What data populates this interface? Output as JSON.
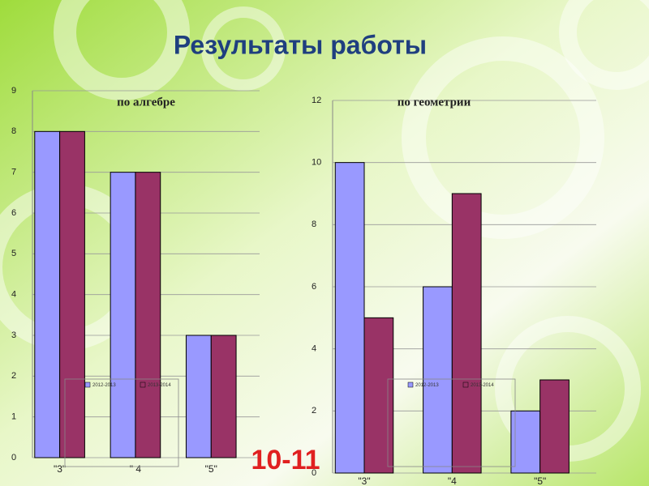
{
  "header": {
    "title": "Результаты работы",
    "grade": "10-11"
  },
  "chart_data": [
    {
      "type": "bar",
      "title": "по алгебре",
      "categories": [
        "\"3\"",
        "\" 4",
        "\"5\""
      ],
      "series": [
        {
          "name": "2012-2013",
          "color": "#9999ff",
          "values": [
            8,
            7,
            3
          ]
        },
        {
          "name": "2013-2014",
          "color": "#993366",
          "values": [
            8,
            7,
            3
          ]
        }
      ],
      "ylim": [
        0,
        9
      ],
      "yticks": [
        0,
        1,
        2,
        3,
        4,
        5,
        6,
        7,
        8,
        9
      ],
      "grid": true
    },
    {
      "type": "bar",
      "title": "по геометрии",
      "categories": [
        "\"3\"",
        "\"4",
        "\"5\""
      ],
      "series": [
        {
          "name": "2012-2013",
          "color": "#9999ff",
          "values": [
            10,
            6,
            2
          ]
        },
        {
          "name": "2013-2014",
          "color": "#993366",
          "values": [
            5,
            9,
            3
          ]
        }
      ],
      "ylim": [
        0,
        12
      ],
      "yticks": [
        0,
        2,
        4,
        6,
        8,
        10,
        12
      ],
      "grid": true
    }
  ]
}
